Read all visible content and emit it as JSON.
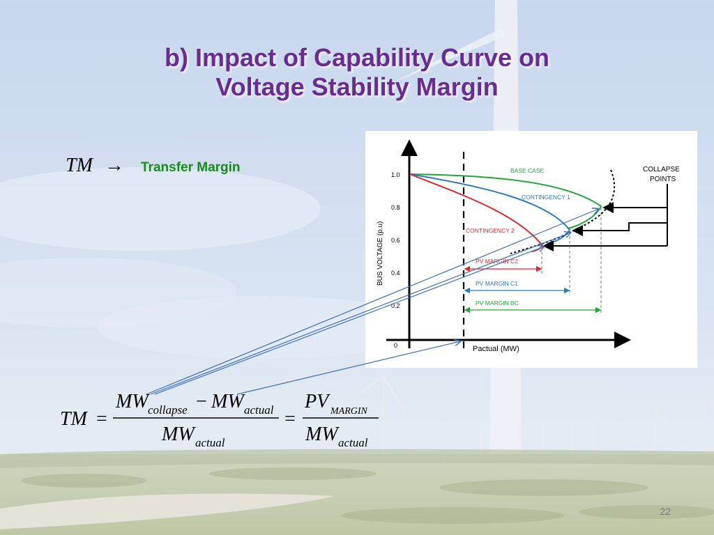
{
  "slide": {
    "title_line1": "b) Impact of Capability Curve on",
    "title_line2": "Voltage Stability Margin",
    "tm_symbol": "TM",
    "tm_arrow": "→",
    "tm_description": "Transfer Margin",
    "page_number": "22"
  },
  "diagram": {
    "ylabel": "BUS VOLTAGE (p.u)",
    "xlabel": "Pactual (MW)",
    "yticks": [
      "1.0",
      "0.8",
      "0.6",
      "0.4",
      "0.2",
      "0"
    ],
    "collapse_label_line1": "COLLAPSE",
    "collapse_label_line2": "POINTS",
    "curves": {
      "base": "BASE CASE",
      "c1": "CONTINGENCY 1",
      "c2": "CONTINGENCY 2"
    },
    "margins": {
      "c2": "PV MARGIN C2",
      "c1": "PV MARGIN C1",
      "bc": "PV MARGIN BC"
    },
    "colors": {
      "base": "#22a83a",
      "c1": "#2a7bbf",
      "c2": "#e0262b"
    }
  },
  "formula": {
    "lhs": "TM",
    "eq": "=",
    "num_mw1": "MW",
    "num_sub1": "collapse",
    "minus": "−",
    "num_mw2": "MW",
    "num_sub2": "actual",
    "den_mw": "MW",
    "den_sub": "actual",
    "eq2": "=",
    "num2_pv": "PV",
    "num2_sub": "MARGIN",
    "den2_mw": "MW",
    "den2_sub": "actual"
  }
}
